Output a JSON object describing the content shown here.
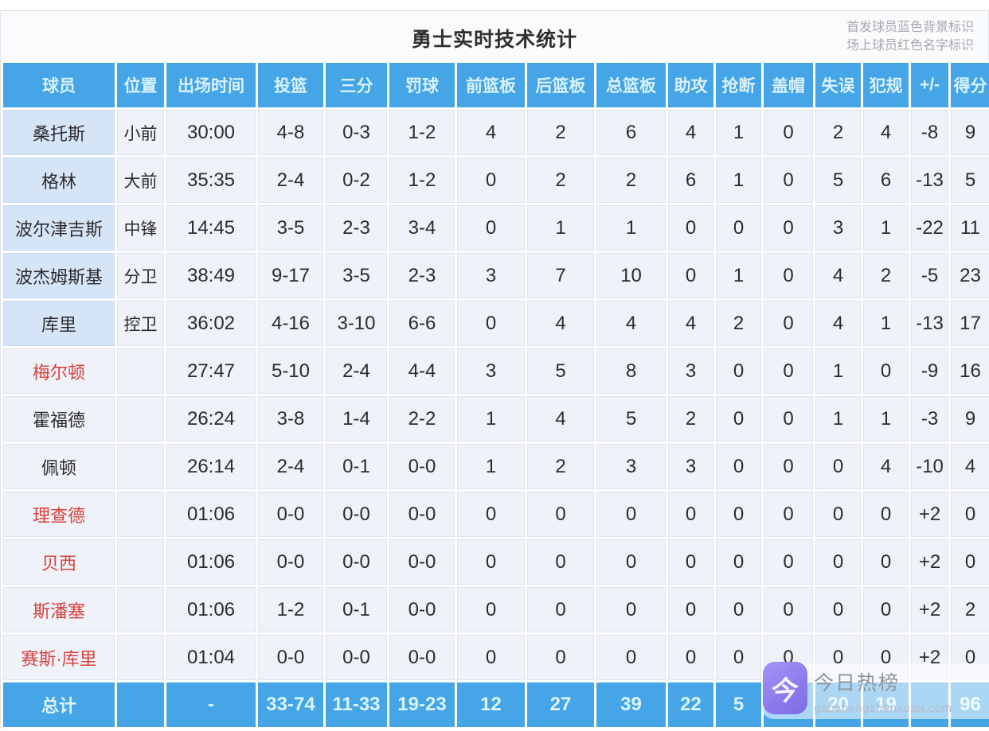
{
  "header": {
    "title": "勇士实时技术统计",
    "legend_line1": "首发球员蓝色背景标识",
    "legend_line2": "场上球员红色名字标识"
  },
  "colors": {
    "header_blue": "#45a5e6",
    "starter_row_bg": "#d6e4f7",
    "data_row_bg": "#eff2f9",
    "oncourt_red": "#d8423b"
  },
  "chart_data": {
    "type": "table",
    "title": "勇士实时技术统计",
    "columns": [
      "球员",
      "位置",
      "出场时间",
      "投篮",
      "三分",
      "罚球",
      "前篮板",
      "后篮板",
      "总篮板",
      "助攻",
      "抢断",
      "盖帽",
      "失误",
      "犯规",
      "+/-",
      "得分"
    ],
    "rows": [
      {
        "name": "桑托斯",
        "position": "小前",
        "time": "30:00",
        "fg": "4-8",
        "tp": "0-3",
        "ft": "1-2",
        "orb": "4",
        "drb": "2",
        "trb": "6",
        "ast": "4",
        "stl": "1",
        "blk": "0",
        "tov": "2",
        "pf": "4",
        "pm": "-8",
        "pts": "9",
        "starter": true,
        "oncourt": false
      },
      {
        "name": "格林",
        "position": "大前",
        "time": "35:35",
        "fg": "2-4",
        "tp": "0-2",
        "ft": "1-2",
        "orb": "0",
        "drb": "2",
        "trb": "2",
        "ast": "6",
        "stl": "1",
        "blk": "0",
        "tov": "5",
        "pf": "6",
        "pm": "-13",
        "pts": "5",
        "starter": true,
        "oncourt": false
      },
      {
        "name": "波尔津吉斯",
        "position": "中锋",
        "time": "14:45",
        "fg": "3-5",
        "tp": "2-3",
        "ft": "3-4",
        "orb": "0",
        "drb": "1",
        "trb": "1",
        "ast": "0",
        "stl": "0",
        "blk": "0",
        "tov": "3",
        "pf": "1",
        "pm": "-22",
        "pts": "11",
        "starter": true,
        "oncourt": false
      },
      {
        "name": "波杰姆斯基",
        "position": "分卫",
        "time": "38:49",
        "fg": "9-17",
        "tp": "3-5",
        "ft": "2-3",
        "orb": "3",
        "drb": "7",
        "trb": "10",
        "ast": "0",
        "stl": "1",
        "blk": "0",
        "tov": "4",
        "pf": "2",
        "pm": "-5",
        "pts": "23",
        "starter": true,
        "oncourt": false
      },
      {
        "name": "库里",
        "position": "控卫",
        "time": "36:02",
        "fg": "4-16",
        "tp": "3-10",
        "ft": "6-6",
        "orb": "0",
        "drb": "4",
        "trb": "4",
        "ast": "4",
        "stl": "2",
        "blk": "0",
        "tov": "4",
        "pf": "1",
        "pm": "-13",
        "pts": "17",
        "starter": true,
        "oncourt": false
      },
      {
        "name": "梅尔顿",
        "position": "",
        "time": "27:47",
        "fg": "5-10",
        "tp": "2-4",
        "ft": "4-4",
        "orb": "3",
        "drb": "5",
        "trb": "8",
        "ast": "3",
        "stl": "0",
        "blk": "0",
        "tov": "1",
        "pf": "0",
        "pm": "-9",
        "pts": "16",
        "starter": false,
        "oncourt": true
      },
      {
        "name": "霍福德",
        "position": "",
        "time": "26:24",
        "fg": "3-8",
        "tp": "1-4",
        "ft": "2-2",
        "orb": "1",
        "drb": "4",
        "trb": "5",
        "ast": "2",
        "stl": "0",
        "blk": "0",
        "tov": "1",
        "pf": "1",
        "pm": "-3",
        "pts": "9",
        "starter": false,
        "oncourt": false
      },
      {
        "name": "佩顿",
        "position": "",
        "time": "26:14",
        "fg": "2-4",
        "tp": "0-1",
        "ft": "0-0",
        "orb": "1",
        "drb": "2",
        "trb": "3",
        "ast": "3",
        "stl": "0",
        "blk": "0",
        "tov": "0",
        "pf": "4",
        "pm": "-10",
        "pts": "4",
        "starter": false,
        "oncourt": false
      },
      {
        "name": "理查德",
        "position": "",
        "time": "01:06",
        "fg": "0-0",
        "tp": "0-0",
        "ft": "0-0",
        "orb": "0",
        "drb": "0",
        "trb": "0",
        "ast": "0",
        "stl": "0",
        "blk": "0",
        "tov": "0",
        "pf": "0",
        "pm": "+2",
        "pts": "0",
        "starter": false,
        "oncourt": true
      },
      {
        "name": "贝西",
        "position": "",
        "time": "01:06",
        "fg": "0-0",
        "tp": "0-0",
        "ft": "0-0",
        "orb": "0",
        "drb": "0",
        "trb": "0",
        "ast": "0",
        "stl": "0",
        "blk": "0",
        "tov": "0",
        "pf": "0",
        "pm": "+2",
        "pts": "0",
        "starter": false,
        "oncourt": true
      },
      {
        "name": "斯潘塞",
        "position": "",
        "time": "01:06",
        "fg": "1-2",
        "tp": "0-1",
        "ft": "0-0",
        "orb": "0",
        "drb": "0",
        "trb": "0",
        "ast": "0",
        "stl": "0",
        "blk": "0",
        "tov": "0",
        "pf": "0",
        "pm": "+2",
        "pts": "2",
        "starter": false,
        "oncourt": true
      },
      {
        "name": "赛斯·库里",
        "position": "",
        "time": "01:04",
        "fg": "0-0",
        "tp": "0-0",
        "ft": "0-0",
        "orb": "0",
        "drb": "0",
        "trb": "0",
        "ast": "0",
        "stl": "0",
        "blk": "0",
        "tov": "0",
        "pf": "0",
        "pm": "+2",
        "pts": "0",
        "starter": false,
        "oncourt": true
      }
    ],
    "total": {
      "name": "总计",
      "position": "",
      "time": "-",
      "fg": "33-74",
      "tp": "11-33",
      "ft": "19-23",
      "orb": "12",
      "drb": "27",
      "trb": "39",
      "ast": "22",
      "stl": "5",
      "blk": "0",
      "tov": "20",
      "pf": "19",
      "pm": "",
      "pts": "96"
    }
  },
  "watermark": {
    "icon_glyph": "今",
    "title": "今日热榜",
    "url": "gaochengzhenxuan.com"
  }
}
